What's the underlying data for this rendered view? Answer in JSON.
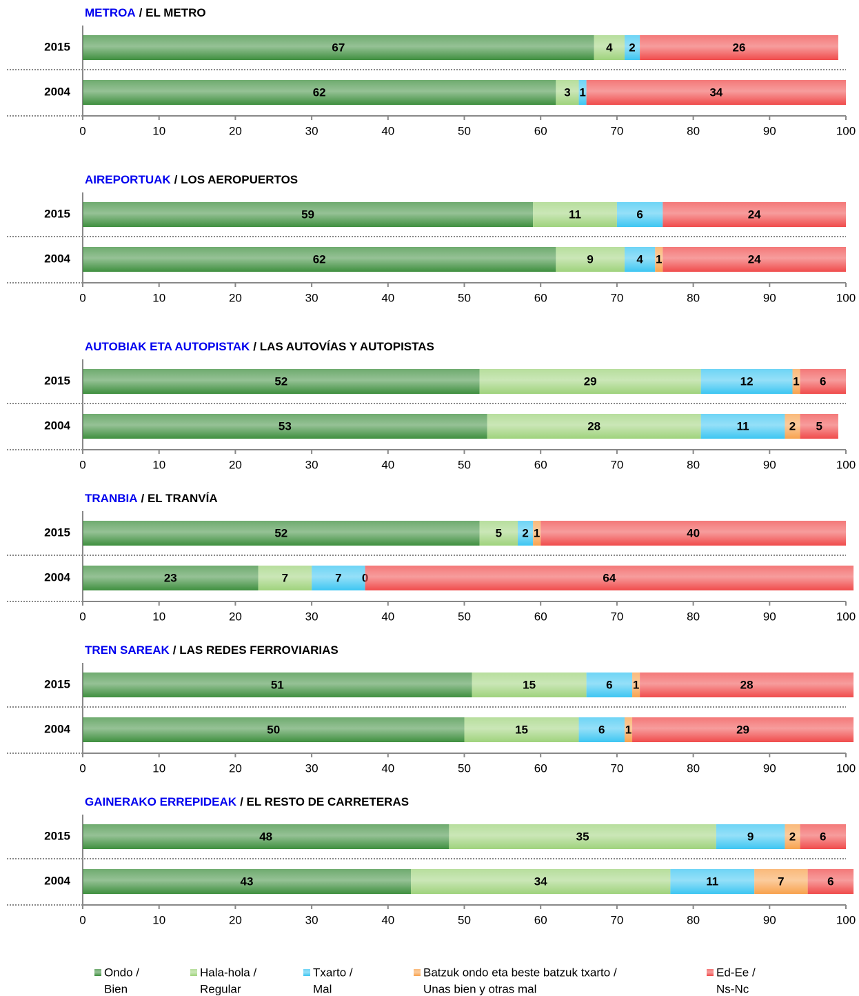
{
  "legend": [
    {
      "name": [
        "Ondo /",
        "Bien"
      ],
      "color": "#3f8f3f"
    },
    {
      "name": [
        "Hala-hola /",
        "Regular"
      ],
      "color": "#9fd37c"
    },
    {
      "name": [
        "Txarto /",
        "Mal"
      ],
      "color": "#3ec6f2"
    },
    {
      "name": [
        "Batzuk ondo eta beste batzuk txarto /",
        "Unas bien y otras mal"
      ],
      "color": "#f8a24e"
    },
    {
      "name": [
        "Ed-Ee /",
        "Ns-Nc"
      ],
      "color": "#f04c4c"
    }
  ],
  "chart_data": [
    {
      "type": "bar",
      "title": "METROA",
      "subtitle": "/ EL METRO",
      "categories": [
        "2015",
        "2004"
      ],
      "series": [
        {
          "values": [
            67,
            62
          ]
        },
        {
          "values": [
            4,
            3
          ]
        },
        {
          "values": [
            2,
            1
          ]
        },
        {
          "values": [
            null,
            null
          ]
        },
        {
          "values": [
            26,
            34
          ]
        }
      ],
      "xlim": [
        0,
        100
      ],
      "xticks": [
        0,
        10,
        20,
        30,
        40,
        50,
        60,
        70,
        80,
        90,
        100
      ]
    },
    {
      "type": "bar",
      "title": "AIREPORTUAK",
      "subtitle": "/ LOS AEROPUERTOS",
      "categories": [
        "2015",
        "2004"
      ],
      "series": [
        {
          "values": [
            59,
            62
          ]
        },
        {
          "values": [
            11,
            9
          ]
        },
        {
          "values": [
            6,
            4
          ]
        },
        {
          "values": [
            null,
            1
          ]
        },
        {
          "values": [
            24,
            24
          ]
        }
      ],
      "xlim": [
        0,
        100
      ],
      "xticks": [
        0,
        10,
        20,
        30,
        40,
        50,
        60,
        70,
        80,
        90,
        100
      ]
    },
    {
      "type": "bar",
      "title": "AUTOBIAK ETA AUTOPISTAK",
      "subtitle": "/ LAS AUTOVÍAS Y AUTOPISTAS",
      "categories": [
        "2015",
        "2004"
      ],
      "series": [
        {
          "values": [
            52,
            53
          ]
        },
        {
          "values": [
            29,
            28
          ]
        },
        {
          "values": [
            12,
            11
          ]
        },
        {
          "values": [
            1,
            2
          ]
        },
        {
          "values": [
            6,
            5
          ]
        }
      ],
      "xlim": [
        0,
        100
      ],
      "xticks": [
        0,
        10,
        20,
        30,
        40,
        50,
        60,
        70,
        80,
        90,
        100
      ]
    },
    {
      "type": "bar",
      "title": "TRANBIA",
      "subtitle": "/ EL TRANVÍA",
      "categories": [
        "2015",
        "2004"
      ],
      "series": [
        {
          "values": [
            52,
            23
          ]
        },
        {
          "values": [
            5,
            7
          ]
        },
        {
          "values": [
            2,
            7
          ]
        },
        {
          "values": [
            1,
            0
          ]
        },
        {
          "values": [
            40,
            64
          ]
        }
      ],
      "xlim": [
        0,
        100
      ],
      "xticks": [
        0,
        10,
        20,
        30,
        40,
        50,
        60,
        70,
        80,
        90,
        100
      ]
    },
    {
      "type": "bar",
      "title": "TREN SAREAK",
      "subtitle": "/ LAS REDES FERROVIARIAS",
      "categories": [
        "2015",
        "2004"
      ],
      "series": [
        {
          "values": [
            51,
            50
          ]
        },
        {
          "values": [
            15,
            15
          ]
        },
        {
          "values": [
            6,
            6
          ]
        },
        {
          "values": [
            1,
            1
          ]
        },
        {
          "values": [
            28,
            29
          ]
        }
      ],
      "xlim": [
        0,
        100
      ],
      "xticks": [
        0,
        10,
        20,
        30,
        40,
        50,
        60,
        70,
        80,
        90,
        100
      ]
    },
    {
      "type": "bar",
      "title": "GAINERAKO ERREPIDEAK",
      "subtitle": "/ EL RESTO DE CARRETERAS",
      "categories": [
        "2015",
        "2004"
      ],
      "series": [
        {
          "values": [
            48,
            43
          ]
        },
        {
          "values": [
            35,
            34
          ]
        },
        {
          "values": [
            9,
            11
          ]
        },
        {
          "values": [
            2,
            7
          ]
        },
        {
          "values": [
            6,
            6
          ]
        }
      ],
      "xlim": [
        0,
        100
      ],
      "xticks": [
        0,
        10,
        20,
        30,
        40,
        50,
        60,
        70,
        80,
        90,
        100
      ]
    }
  ]
}
